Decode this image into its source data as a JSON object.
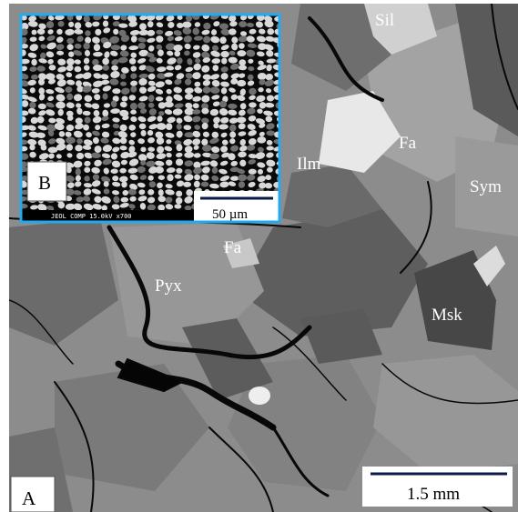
{
  "main": {
    "panel_label": "A",
    "scale_bar": "1.5 mm",
    "labels": [
      "Sil",
      "Fa",
      "Ilm",
      "Sym",
      "Fa",
      "Pyx",
      "Msk"
    ]
  },
  "inset": {
    "panel_label": "B",
    "scale_bar": "50 µm",
    "info": "JEOL COMP  15.0kV   x700"
  }
}
